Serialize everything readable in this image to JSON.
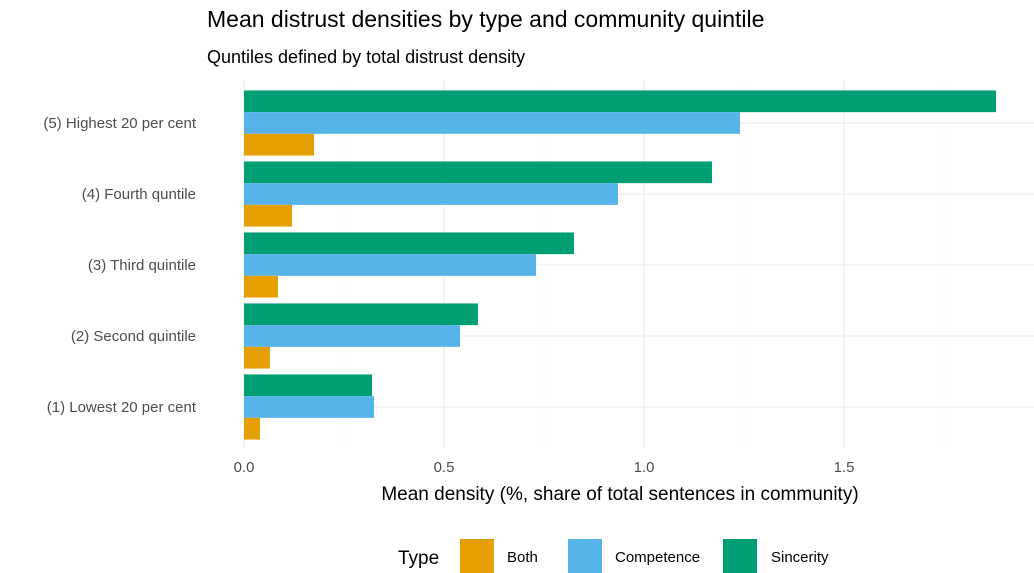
{
  "chart_data": {
    "type": "bar",
    "orientation": "horizontal",
    "title": "Mean distrust densities by type and community quintile",
    "subtitle": "Quntiles defined by total distrust density",
    "xlabel": "Mean density (%, share of total sentences in community)",
    "ylabel": "",
    "xlim": [
      0,
      1.88
    ],
    "x_ticks": [
      "0.0",
      "0.5",
      "1.0",
      "1.5"
    ],
    "x_tick_values": [
      0,
      0.5,
      1.0,
      1.5
    ],
    "categories": [
      "(1) Lowest 20 per cent",
      "(2) Second quintile",
      "(3) Third quintile",
      "(4) Fourth quntile",
      "(5) Highest 20 per cent"
    ],
    "series": [
      {
        "name": "Both",
        "color": "#E69F00",
        "values": [
          0.04,
          0.065,
          0.085,
          0.12,
          0.175
        ]
      },
      {
        "name": "Competence",
        "color": "#56B4E9",
        "values": [
          0.325,
          0.54,
          0.73,
          0.935,
          1.24
        ]
      },
      {
        "name": "Sincerity",
        "color": "#009E73",
        "values": [
          0.32,
          0.585,
          0.825,
          1.17,
          1.88
        ]
      }
    ],
    "grid": true,
    "legend": {
      "title": "Type",
      "position": "bottom"
    }
  }
}
